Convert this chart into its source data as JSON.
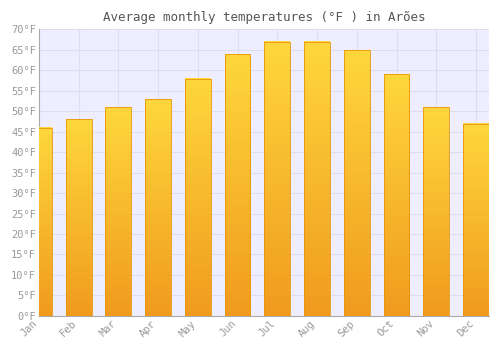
{
  "title": "Average monthly temperatures (°F ) in Arões",
  "months": [
    "Jan",
    "Feb",
    "Mar",
    "Apr",
    "May",
    "Jun",
    "Jul",
    "Aug",
    "Sep",
    "Oct",
    "Nov",
    "Dec"
  ],
  "values": [
    46,
    48,
    51,
    53,
    58,
    64,
    67,
    67,
    65,
    59,
    51,
    47
  ],
  "bar_color_left": "#F5A623",
  "bar_color_right": "#FFD04E",
  "bar_edge_color": "#E8950A",
  "plot_bg_color": "#EEEEFF",
  "background_color": "#FFFFFF",
  "grid_color": "#DDDDEE",
  "ylim": [
    0,
    70
  ],
  "yticks": [
    0,
    5,
    10,
    15,
    20,
    25,
    30,
    35,
    40,
    45,
    50,
    55,
    60,
    65,
    70
  ],
  "tick_label_color": "#999999",
  "title_color": "#555555",
  "title_fontsize": 9,
  "tick_fontsize": 7.5,
  "bar_width": 0.65
}
